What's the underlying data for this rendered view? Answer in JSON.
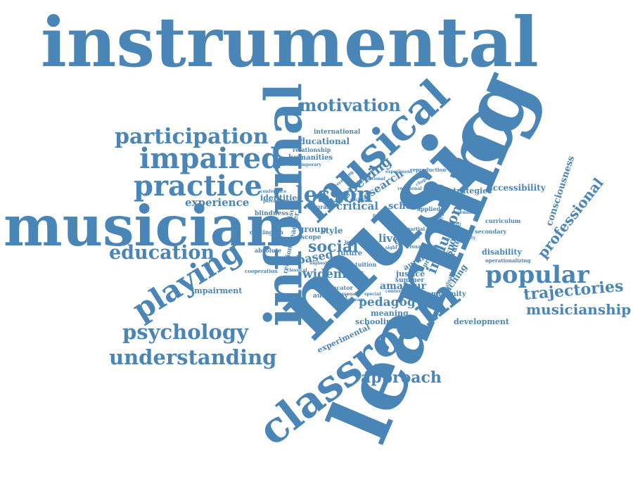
{
  "colors": {
    "word": "#4a85b8",
    "background": "#ffffff"
  },
  "words": {
    "instrumental": "instrumental",
    "learning": "learning",
    "music": "music",
    "musician": "musician",
    "informal": "informal",
    "musical": "musical",
    "classroom": "classroom",
    "lesson": "lesson",
    "practice": "practice",
    "impaired": "impaired",
    "participation": "participation",
    "playing": "playing",
    "education": "education",
    "psychology": "psychology",
    "understanding": "understanding",
    "popular": "popular",
    "approach": "approach",
    "motivation": "motivation",
    "social": "social",
    "trajectories": "trajectories",
    "musicianship": "musicianship",
    "professional": "professional",
    "consciousness": "consciousness",
    "inclusion": "inclusion",
    "widening": "widening",
    "deepening": "deepening",
    "research": "research",
    "critical": "critical",
    "school": "school",
    "experience": "experience",
    "pedagogy": "pedagogy",
    "amateur": "amateur",
    "teaching": "teaching",
    "response": "response",
    "strategy": "strategy",
    "accessibility": "accessibility",
    "strategies": "strategies",
    "disability": "disability",
    "development": "development",
    "impairment": "impairment",
    "experimental": "experimental",
    "identities": "identities",
    "educational": "educational",
    "international": "international",
    "relationship": "relationship",
    "humanities": "humanities",
    "live": "live",
    "grant": "grant",
    "based": "based",
    "group": "group",
    "style": "style",
    "scope": "scope",
    "justice": "justice",
    "summer": "summer",
    "meaning": "meaning",
    "schooling": "schooling",
    "community": "community",
    "curriculum": "curriculum",
    "secondary": "secondary",
    "identity": "identity",
    "applied": "applied",
    "aural": "aural",
    "blindness": "blindness",
    "dartington": "dartington",
    "absolute": "absolute",
    "cooperation": "cooperation",
    "autonomy": "autonomy",
    "educator": "educator",
    "future": "future",
    "tuition": "tuition",
    "relation": "relation",
    "teacher": "teacher",
    "leisure": "leisure",
    "cultural": "cultural",
    "visual": "visual",
    "partial": "partial",
    "project": "project",
    "evaluation": "evaluation",
    "operationalizing": "operationalizing",
    "reproduction": "reproduction",
    "experiment": "experiment",
    "recording": "recording",
    "contemporary": "contemporary",
    "perception": "perception",
    "conference": "conference",
    "classical": "classical",
    "highest": "highest",
    "personal": "personal",
    "mainstream": "mainstream",
    "special": "special",
    "formal": "formal",
    "context": "context",
    "issue": "issue",
    "society": "society",
    "sight": "sight",
    "finding": "finding",
    "chapter": "chapter",
    "vocational": "vocational",
    "ensemble": "ensemble",
    "ability": "ability",
    "control": "control",
    "national": "national"
  }
}
